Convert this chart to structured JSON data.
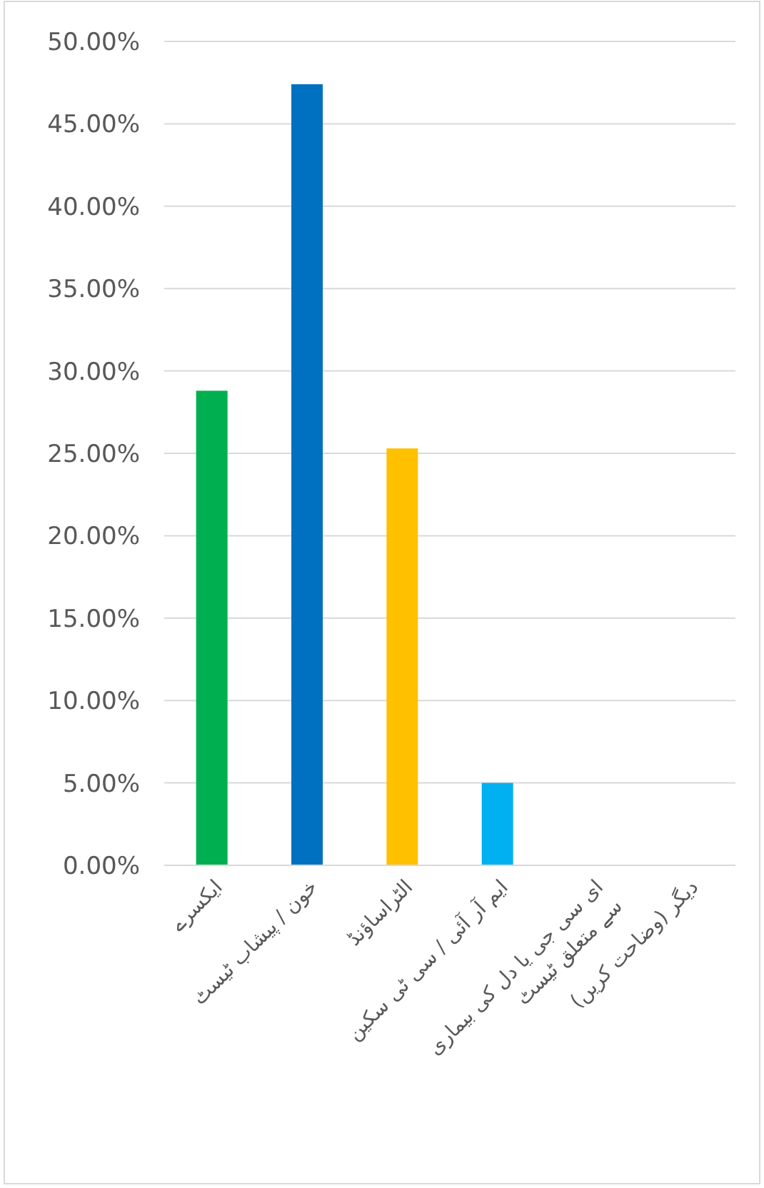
{
  "chart_data": {
    "type": "bar",
    "categories": [
      "ایکسرے",
      "خون / پیشاب ٹیسٹ",
      "الٹراساؤنڈ",
      "ایم آر آئی / سی ٹی سکین",
      "ای سی جی یا دل کی بیماری سے متعلق ٹیسٹ",
      "دیگر (وضاحت کریں)"
    ],
    "values": [
      28.8,
      47.4,
      25.3,
      5.0,
      0,
      0
    ],
    "colors": [
      "#00b050",
      "#0070c0",
      "#ffc000",
      "#00b0f0",
      "#7f7f7f",
      "#7f7f7f"
    ],
    "ylim": [
      0,
      50
    ],
    "yticks": [
      {
        "value": 0,
        "label": "0.00%"
      },
      {
        "value": 5,
        "label": "5.00%"
      },
      {
        "value": 10,
        "label": "10.00%"
      },
      {
        "value": 15,
        "label": "15.00%"
      },
      {
        "value": 20,
        "label": "20.00%"
      },
      {
        "value": 25,
        "label": "25.00%"
      },
      {
        "value": 30,
        "label": "30.00%"
      },
      {
        "value": 35,
        "label": "35.00%"
      },
      {
        "value": 40,
        "label": "40.00%"
      },
      {
        "value": 45,
        "label": "45.00%"
      },
      {
        "value": 50,
        "label": "50.00%"
      }
    ],
    "grid": "y"
  }
}
